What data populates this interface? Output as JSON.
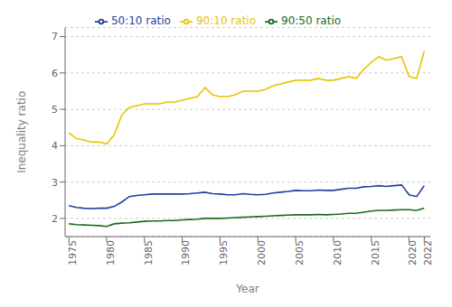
{
  "chart_data": {
    "type": "line",
    "xlabel": "Year",
    "ylabel": "Inequality ratio",
    "x": [
      1975,
      1976,
      1977,
      1978,
      1979,
      1980,
      1981,
      1982,
      1983,
      1984,
      1985,
      1986,
      1987,
      1988,
      1989,
      1990,
      1991,
      1992,
      1993,
      1994,
      1995,
      1996,
      1997,
      1998,
      1999,
      2000,
      2001,
      2002,
      2003,
      2004,
      2005,
      2006,
      2007,
      2008,
      2009,
      2010,
      2011,
      2012,
      2013,
      2014,
      2015,
      2016,
      2017,
      2018,
      2019,
      2020,
      2021,
      2022
    ],
    "series": [
      {
        "name": "90:10 ratio",
        "color": "#E8C400",
        "values": [
          4.35,
          4.2,
          4.15,
          4.1,
          4.1,
          4.05,
          4.3,
          4.85,
          5.05,
          5.1,
          5.15,
          5.15,
          5.15,
          5.2,
          5.2,
          5.25,
          5.3,
          5.35,
          5.6,
          5.4,
          5.35,
          5.35,
          5.4,
          5.5,
          5.5,
          5.5,
          5.55,
          5.65,
          5.7,
          5.75,
          5.8,
          5.8,
          5.8,
          5.85,
          5.8,
          5.8,
          5.85,
          5.9,
          5.85,
          6.1,
          6.3,
          6.45,
          6.35,
          6.4,
          6.45,
          5.9,
          5.85,
          6.6
        ]
      },
      {
        "name": "50:10 ratio",
        "color": "#1F3F9A",
        "values": [
          2.35,
          2.3,
          2.28,
          2.27,
          2.28,
          2.28,
          2.33,
          2.45,
          2.6,
          2.63,
          2.65,
          2.67,
          2.67,
          2.67,
          2.67,
          2.67,
          2.68,
          2.7,
          2.72,
          2.68,
          2.67,
          2.65,
          2.65,
          2.68,
          2.66,
          2.65,
          2.66,
          2.7,
          2.72,
          2.74,
          2.77,
          2.76,
          2.76,
          2.78,
          2.77,
          2.77,
          2.8,
          2.83,
          2.83,
          2.87,
          2.88,
          2.9,
          2.88,
          2.9,
          2.92,
          2.65,
          2.6,
          2.9
        ]
      },
      {
        "name": "90:50 ratio",
        "color": "#1A6B1A",
        "values": [
          1.85,
          1.83,
          1.82,
          1.81,
          1.8,
          1.78,
          1.85,
          1.87,
          1.88,
          1.9,
          1.92,
          1.93,
          1.93,
          1.94,
          1.94,
          1.96,
          1.97,
          1.98,
          2.0,
          2.0,
          2.0,
          2.01,
          2.02,
          2.03,
          2.04,
          2.05,
          2.06,
          2.07,
          2.08,
          2.09,
          2.1,
          2.1,
          2.1,
          2.11,
          2.1,
          2.11,
          2.12,
          2.14,
          2.14,
          2.17,
          2.2,
          2.22,
          2.22,
          2.23,
          2.24,
          2.24,
          2.22,
          2.28
        ]
      }
    ],
    "xlim": [
      1974.5,
      2022.8
    ],
    "xticks": [
      1975,
      1980,
      1985,
      1990,
      1995,
      2000,
      2005,
      2010,
      2015,
      2020,
      2022
    ],
    "ylim": [
      1.5,
      7.25
    ],
    "yticks": [
      2,
      3,
      4,
      5,
      6,
      7
    ],
    "grid": "y",
    "legend": "top"
  }
}
